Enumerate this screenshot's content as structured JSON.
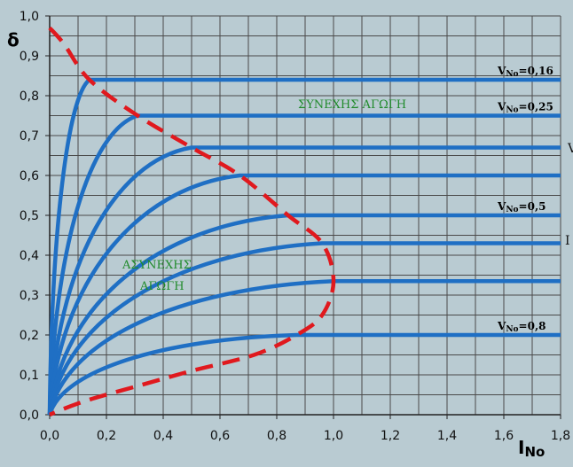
{
  "chart_data": {
    "type": "line",
    "xlabel_main": "I",
    "xlabel_sub": "No",
    "ylabel": "δ",
    "xlim": [
      0,
      1.8
    ],
    "ylim": [
      0,
      1.0
    ],
    "x_ticks": [
      "0,0",
      "0,2",
      "0,4",
      "0,6",
      "0,8",
      "1,0",
      "1,2",
      "1,4",
      "1,6",
      "1,8"
    ],
    "y_ticks": [
      "0,0",
      "0,1",
      "0,2",
      "0,3",
      "0,4",
      "0,5",
      "0,6",
      "0,7",
      "0,8",
      "0,9",
      "1,0"
    ],
    "grid": true,
    "series_color": "#1f6fc4",
    "boundary_color": "#e0191e",
    "series": [
      {
        "name": "V_No=0,16",
        "label": "V",
        "label_sub": "No",
        "label_value": "=0,16",
        "knee": [
          0.14,
          0.84
        ]
      },
      {
        "name": "V_No=0,25",
        "label": "V",
        "label_sub": "No",
        "label_value": "=0,25",
        "knee": [
          0.31,
          0.75
        ]
      },
      {
        "name": "",
        "knee": [
          0.5,
          0.67
        ]
      },
      {
        "name": "",
        "knee": [
          0.67,
          0.6
        ]
      },
      {
        "name": "V_No=0,5",
        "label": "V",
        "label_sub": "No",
        "label_value": "=0,5",
        "knee": [
          0.84,
          0.5
        ]
      },
      {
        "name": "",
        "knee": [
          0.96,
          0.43
        ]
      },
      {
        "name": "",
        "knee": [
          1.0,
          0.335
        ]
      },
      {
        "name": "V_No=0,8",
        "label": "V",
        "label_sub": "No",
        "label_value": "=0,8",
        "knee": [
          0.87,
          0.2
        ]
      }
    ],
    "boundary_curve": [
      [
        0.0,
        0.97
      ],
      [
        0.05,
        0.93
      ],
      [
        0.14,
        0.84
      ],
      [
        0.31,
        0.75
      ],
      [
        0.5,
        0.67
      ],
      [
        0.67,
        0.6
      ],
      [
        0.84,
        0.5
      ],
      [
        0.96,
        0.43
      ],
      [
        1.0,
        0.335
      ],
      [
        0.96,
        0.25
      ],
      [
        0.87,
        0.2
      ],
      [
        0.72,
        0.15
      ],
      [
        0.5,
        0.11
      ],
      [
        0.3,
        0.07
      ],
      [
        0.15,
        0.04
      ],
      [
        0.05,
        0.015
      ],
      [
        0.0,
        0.0
      ]
    ],
    "annotations": {
      "continuous": "ΣΥΝΕΧΗΣ ΑΓΩΓΗ",
      "discontinuous_line1": "ΑΣΥΝΕΧΗΣ",
      "discontinuous_line2": "ΑΓΩΓΗ",
      "clipped_v": "V",
      "clipped_i": "I"
    }
  }
}
